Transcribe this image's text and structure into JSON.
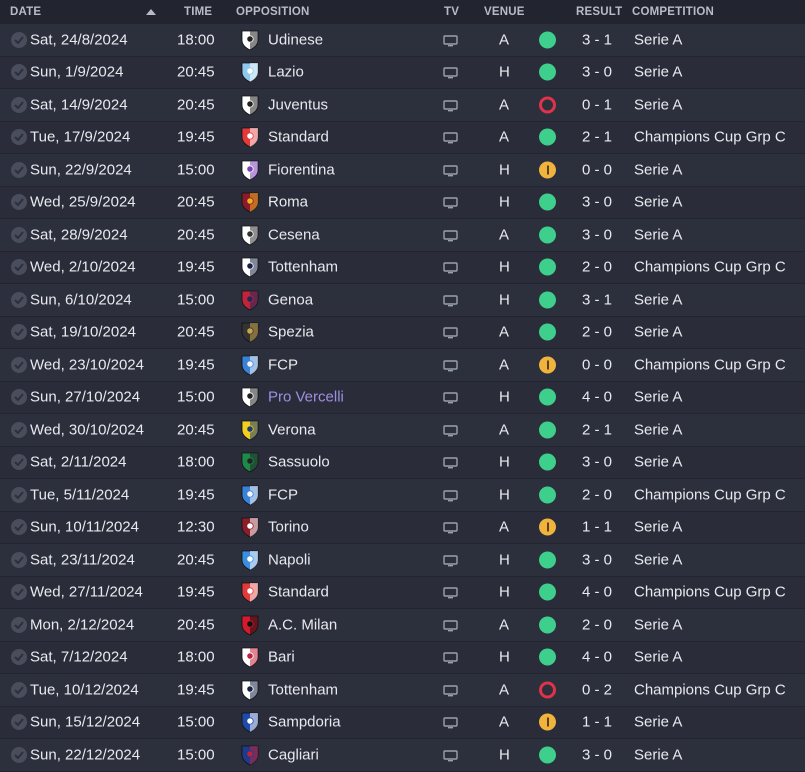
{
  "header": {
    "date": "DATE",
    "time": "TIME",
    "opposition": "OPPOSITION",
    "tv": "TV",
    "venue": "VENUE",
    "result": "RESULT",
    "competition": "COMPETITION"
  },
  "colors": {
    "win": "#3ecf8c",
    "draw": "#f0b33e",
    "loss": "#e0334a",
    "link": "#9f8fe0"
  },
  "fixtures": [
    {
      "date": "Sat, 24/8/2024",
      "time": "18:00",
      "opponent": "Udinese",
      "crest": [
        "#ffffff",
        "#222222"
      ],
      "venue": "A",
      "outcome": "win",
      "result": "3 - 1",
      "competition": "Serie A"
    },
    {
      "date": "Sun, 1/9/2024",
      "time": "20:45",
      "opponent": "Lazio",
      "crest": [
        "#8ec9ee",
        "#ffffff"
      ],
      "venue": "H",
      "outcome": "win",
      "result": "3 - 0",
      "competition": "Serie A"
    },
    {
      "date": "Sat, 14/9/2024",
      "time": "20:45",
      "opponent": "Juventus",
      "crest": [
        "#ffffff",
        "#222222"
      ],
      "venue": "A",
      "outcome": "loss",
      "result": "0 - 1",
      "competition": "Serie A"
    },
    {
      "date": "Tue, 17/9/2024",
      "time": "19:45",
      "opponent": "Standard",
      "crest": [
        "#e23a3a",
        "#ffffff"
      ],
      "venue": "A",
      "outcome": "win",
      "result": "2 - 1",
      "competition": "Champions Cup Grp C"
    },
    {
      "date": "Sun, 22/9/2024",
      "time": "15:00",
      "opponent": "Fiorentina",
      "crest": [
        "#ffffff",
        "#7a3fb0"
      ],
      "venue": "H",
      "outcome": "draw",
      "result": "0 - 0",
      "competition": "Serie A"
    },
    {
      "date": "Wed, 25/9/2024",
      "time": "20:45",
      "opponent": "Roma",
      "crest": [
        "#8b1a2b",
        "#f0b020"
      ],
      "venue": "H",
      "outcome": "win",
      "result": "3 - 0",
      "competition": "Serie A"
    },
    {
      "date": "Sat, 28/9/2024",
      "time": "20:45",
      "opponent": "Cesena",
      "crest": [
        "#ffffff",
        "#333333"
      ],
      "venue": "A",
      "outcome": "win",
      "result": "3 - 0",
      "competition": "Serie A"
    },
    {
      "date": "Wed, 2/10/2024",
      "time": "19:45",
      "opponent": "Tottenham",
      "crest": [
        "#ffffff",
        "#1a2244"
      ],
      "venue": "H",
      "outcome": "win",
      "result": "2 - 0",
      "competition": "Champions Cup Grp C"
    },
    {
      "date": "Sun, 6/10/2024",
      "time": "15:00",
      "opponent": "Genoa",
      "crest": [
        "#c0243a",
        "#1e2a5a"
      ],
      "venue": "H",
      "outcome": "win",
      "result": "3 - 1",
      "competition": "Serie A"
    },
    {
      "date": "Sat, 19/10/2024",
      "time": "20:45",
      "opponent": "Spezia",
      "crest": [
        "#333333",
        "#c8a44a"
      ],
      "venue": "A",
      "outcome": "win",
      "result": "2 - 0",
      "competition": "Serie A"
    },
    {
      "date": "Wed, 23/10/2024",
      "time": "19:45",
      "opponent": "FCP",
      "crest": [
        "#3a82d8",
        "#f5f5f5"
      ],
      "venue": "A",
      "outcome": "draw",
      "result": "0 - 0",
      "competition": "Champions Cup Grp C"
    },
    {
      "date": "Sun, 27/10/2024",
      "time": "15:00",
      "opponent": "Pro Vercelli",
      "crest": [
        "#ffffff",
        "#222222"
      ],
      "venue": "H",
      "outcome": "win",
      "result": "4 - 0",
      "competition": "Serie A",
      "link": true
    },
    {
      "date": "Wed, 30/10/2024",
      "time": "20:45",
      "opponent": "Verona",
      "crest": [
        "#f0d020",
        "#1a3a7a"
      ],
      "venue": "A",
      "outcome": "win",
      "result": "2 - 1",
      "competition": "Serie A"
    },
    {
      "date": "Sat, 2/11/2024",
      "time": "18:00",
      "opponent": "Sassuolo",
      "crest": [
        "#1e8a4a",
        "#222222"
      ],
      "venue": "H",
      "outcome": "win",
      "result": "3 - 0",
      "competition": "Serie A"
    },
    {
      "date": "Tue, 5/11/2024",
      "time": "19:45",
      "opponent": "FCP",
      "crest": [
        "#3a82d8",
        "#f5f5f5"
      ],
      "venue": "H",
      "outcome": "win",
      "result": "2 - 0",
      "competition": "Champions Cup Grp C"
    },
    {
      "date": "Sun, 10/11/2024",
      "time": "12:30",
      "opponent": "Torino",
      "crest": [
        "#8a1f2a",
        "#ffffff"
      ],
      "venue": "A",
      "outcome": "draw",
      "result": "1 - 1",
      "competition": "Serie A"
    },
    {
      "date": "Sat, 23/11/2024",
      "time": "20:45",
      "opponent": "Napoli",
      "crest": [
        "#3a8ee0",
        "#ffffff"
      ],
      "venue": "H",
      "outcome": "win",
      "result": "3 - 0",
      "competition": "Serie A"
    },
    {
      "date": "Wed, 27/11/2024",
      "time": "19:45",
      "opponent": "Standard",
      "crest": [
        "#e23a3a",
        "#ffffff"
      ],
      "venue": "H",
      "outcome": "win",
      "result": "4 - 0",
      "competition": "Champions Cup Grp C"
    },
    {
      "date": "Mon, 2/12/2024",
      "time": "20:45",
      "opponent": "A.C. Milan",
      "crest": [
        "#d01c2c",
        "#111111"
      ],
      "venue": "A",
      "outcome": "win",
      "result": "2 - 0",
      "competition": "Serie A"
    },
    {
      "date": "Sat, 7/12/2024",
      "time": "18:00",
      "opponent": "Bari",
      "crest": [
        "#ffffff",
        "#c0243a"
      ],
      "venue": "H",
      "outcome": "win",
      "result": "4 - 0",
      "competition": "Serie A"
    },
    {
      "date": "Tue, 10/12/2024",
      "time": "19:45",
      "opponent": "Tottenham",
      "crest": [
        "#ffffff",
        "#1a2244"
      ],
      "venue": "A",
      "outcome": "loss",
      "result": "0 - 2",
      "competition": "Champions Cup Grp C"
    },
    {
      "date": "Sun, 15/12/2024",
      "time": "15:00",
      "opponent": "Sampdoria",
      "crest": [
        "#1e4aa8",
        "#ffffff"
      ],
      "venue": "A",
      "outcome": "draw",
      "result": "1 - 1",
      "competition": "Serie A"
    },
    {
      "date": "Sun, 22/12/2024",
      "time": "15:00",
      "opponent": "Cagliari",
      "crest": [
        "#1e3a8a",
        "#c0243a"
      ],
      "venue": "H",
      "outcome": "win",
      "result": "3 - 0",
      "competition": "Serie A"
    }
  ]
}
